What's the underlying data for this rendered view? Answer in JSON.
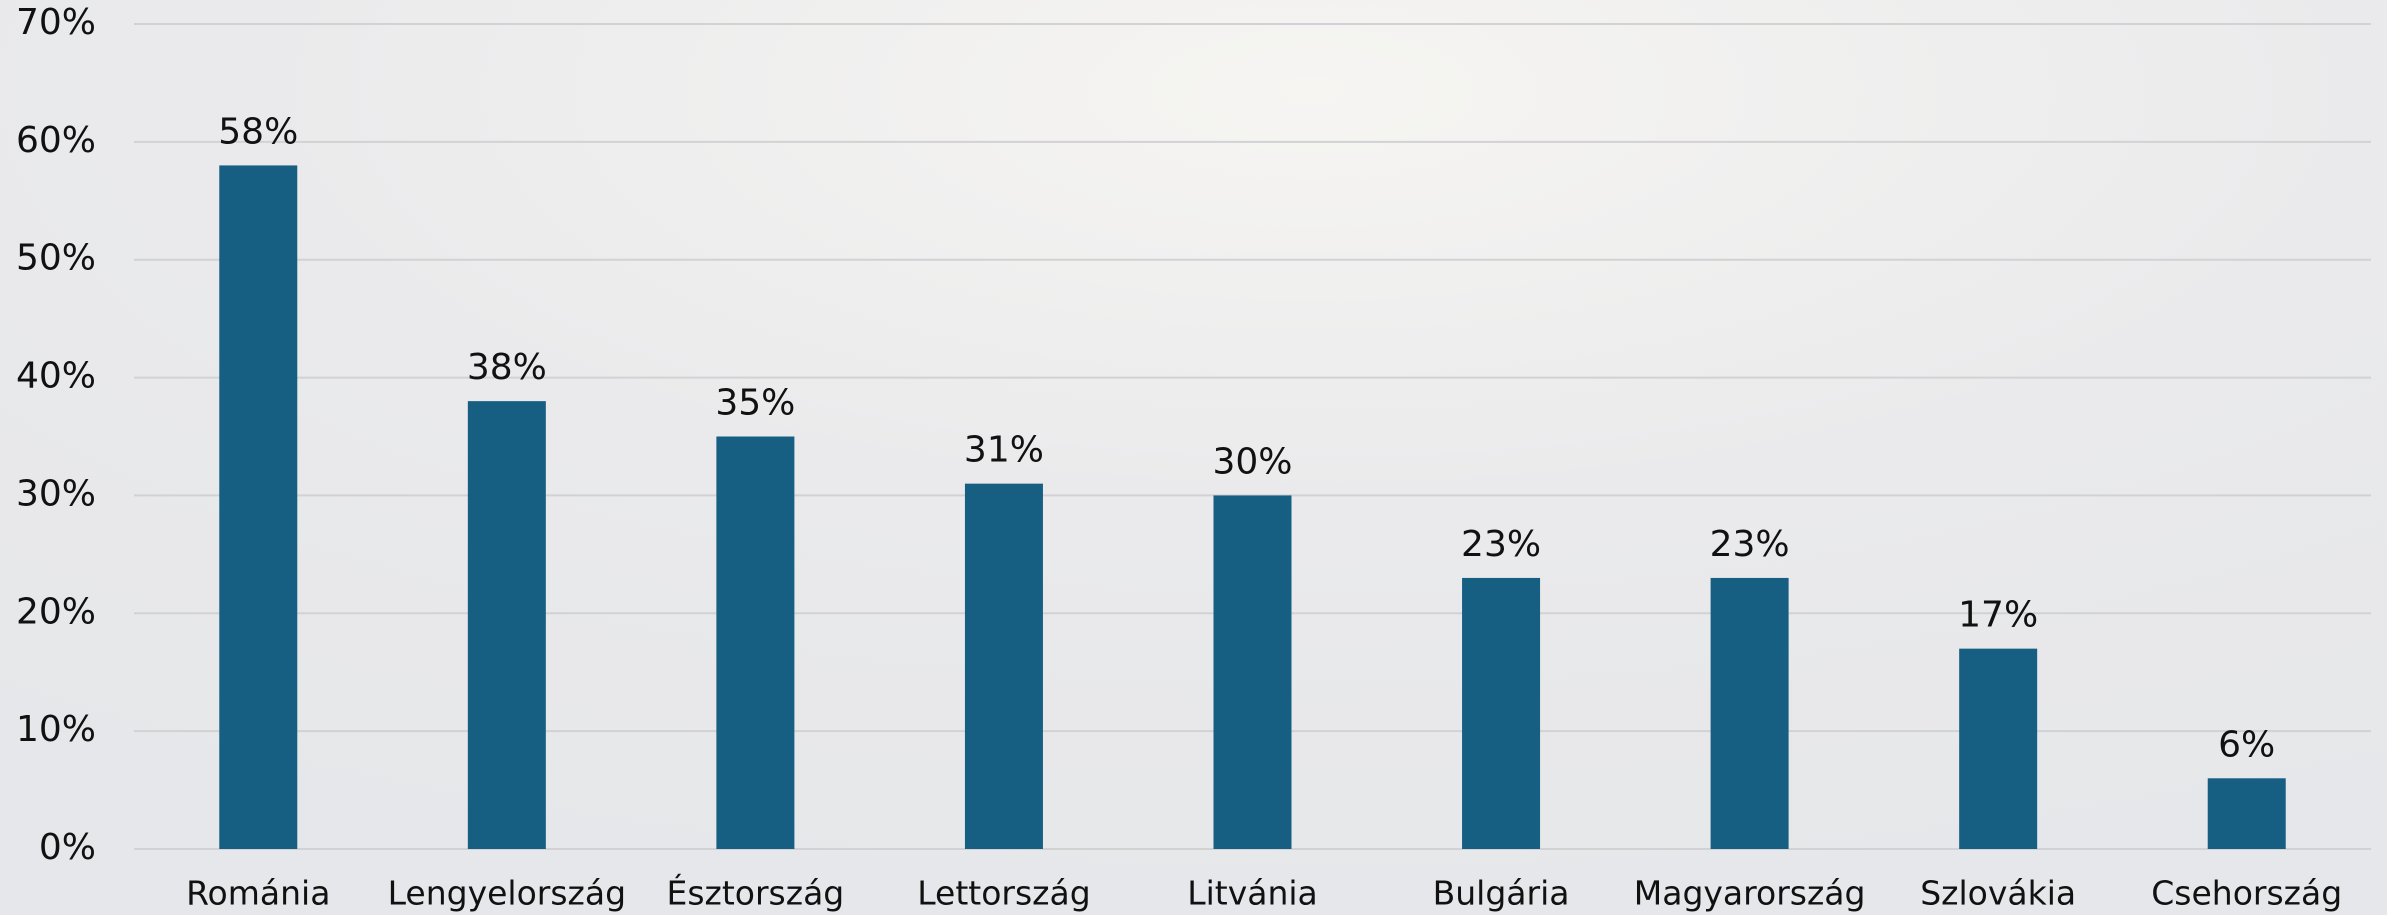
{
  "chart_data": {
    "type": "bar",
    "categories": [
      "Románia",
      "Lengyelország",
      "Észtország",
      "Lettország",
      "Litvánia",
      "Bulgária",
      "Magyarország",
      "Szlovákia",
      "Csehország"
    ],
    "values": [
      58,
      38,
      35,
      31,
      30,
      23,
      23,
      17,
      6
    ],
    "value_labels": [
      "58%",
      "38%",
      "35%",
      "31%",
      "30%",
      "23%",
      "23%",
      "17%",
      "6%"
    ],
    "color": "#165f82",
    "ylim": [
      0,
      70
    ],
    "yticks": [
      {
        "value": 0,
        "label": "0%"
      },
      {
        "value": 10,
        "label": "10%"
      },
      {
        "value": 20,
        "label": "20%"
      },
      {
        "value": 30,
        "label": "30%"
      },
      {
        "value": 40,
        "label": "40%"
      },
      {
        "value": 50,
        "label": "50%"
      },
      {
        "value": 60,
        "label": "60%"
      },
      {
        "value": 70,
        "label": "70%"
      }
    ],
    "grid": true
  }
}
